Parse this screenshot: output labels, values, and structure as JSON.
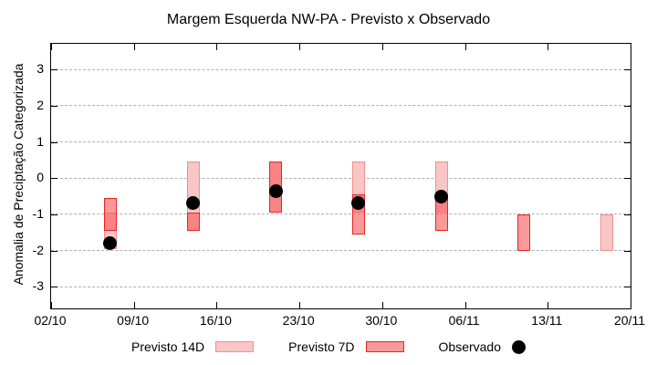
{
  "title": "Margem Esquerda NW-PA - Previsto x Observado",
  "chart_data": {
    "type": "bar",
    "subtype": "range-bars-with-scatter",
    "title": "Margem Esquerda NW-PA - Previsto x Observado",
    "xlabel": "",
    "ylabel": "Anomalia de Preciptação Categorizada",
    "ylim": [
      -3.6,
      3.71
    ],
    "yticks": [
      3,
      2,
      1,
      0,
      -1,
      -2,
      -3
    ],
    "xlim_days": [
      0,
      49
    ],
    "xticks": [
      {
        "day": 0,
        "label": "02/10"
      },
      {
        "day": 7,
        "label": "09/10"
      },
      {
        "day": 14,
        "label": "16/10"
      },
      {
        "day": 21,
        "label": "23/10"
      },
      {
        "day": 28,
        "label": "30/10"
      },
      {
        "day": 35,
        "label": "06/11"
      },
      {
        "day": 42,
        "label": "13/11"
      },
      {
        "day": 49,
        "label": "20/11"
      }
    ],
    "grid": {
      "horizontal_dashed": true,
      "color": "#b0b0b0"
    },
    "legend_position": "bottom-center",
    "axis_color": "#000000",
    "series": [
      {
        "name": "Previsto 14D",
        "type": "range-bar",
        "fill": "#f9c6c6",
        "border": "#f08e8e",
        "points": [
          {
            "date": "07/10",
            "day": 5,
            "low": -1.95,
            "high": -0.95
          },
          {
            "date": "14/10",
            "day": 12,
            "low": -1.45,
            "high": 0.45
          },
          {
            "date": "21/10",
            "day": 19,
            "low": -0.95,
            "high": 0.45
          },
          {
            "date": "28/10",
            "day": 26,
            "low": -0.95,
            "high": 0.45
          },
          {
            "date": "04/11",
            "day": 33,
            "low": -0.95,
            "high": 0.45
          },
          {
            "date": "18/11",
            "day": 47,
            "low": -2.0,
            "high": -1.0
          }
        ]
      },
      {
        "name": "Previsto 7D",
        "type": "range-bar",
        "fill": "#f65a5a",
        "fill_opacity": 0.62,
        "border": "#e62626",
        "points": [
          {
            "date": "07/10",
            "day": 5,
            "low": -1.45,
            "high": -0.55
          },
          {
            "date": "14/10",
            "day": 12,
            "low": -1.45,
            "high": -0.95
          },
          {
            "date": "21/10",
            "day": 19,
            "low": -0.95,
            "high": 0.45
          },
          {
            "date": "28/10",
            "day": 26,
            "low": -1.55,
            "high": -0.45
          },
          {
            "date": "04/11",
            "day": 33,
            "low": -1.45,
            "high": -0.45
          },
          {
            "date": "11/11",
            "day": 40,
            "low": -2.0,
            "high": -1.0
          }
        ]
      },
      {
        "name": "Observado",
        "type": "scatter",
        "color": "#000000",
        "points": [
          {
            "date": "07/10",
            "day": 5,
            "value": -1.8
          },
          {
            "date": "14/10",
            "day": 12,
            "value": -0.7
          },
          {
            "date": "21/10",
            "day": 19,
            "value": -0.35
          },
          {
            "date": "28/10",
            "day": 26,
            "value": -0.7
          },
          {
            "date": "04/11",
            "day": 33,
            "value": -0.5
          }
        ]
      }
    ]
  },
  "legend": {
    "items": [
      {
        "label": "Previsto 14D",
        "swatch": "light-pink-box"
      },
      {
        "label": "Previsto 7D",
        "swatch": "red-box"
      },
      {
        "label": "Observado",
        "swatch": "black-dot"
      }
    ]
  }
}
